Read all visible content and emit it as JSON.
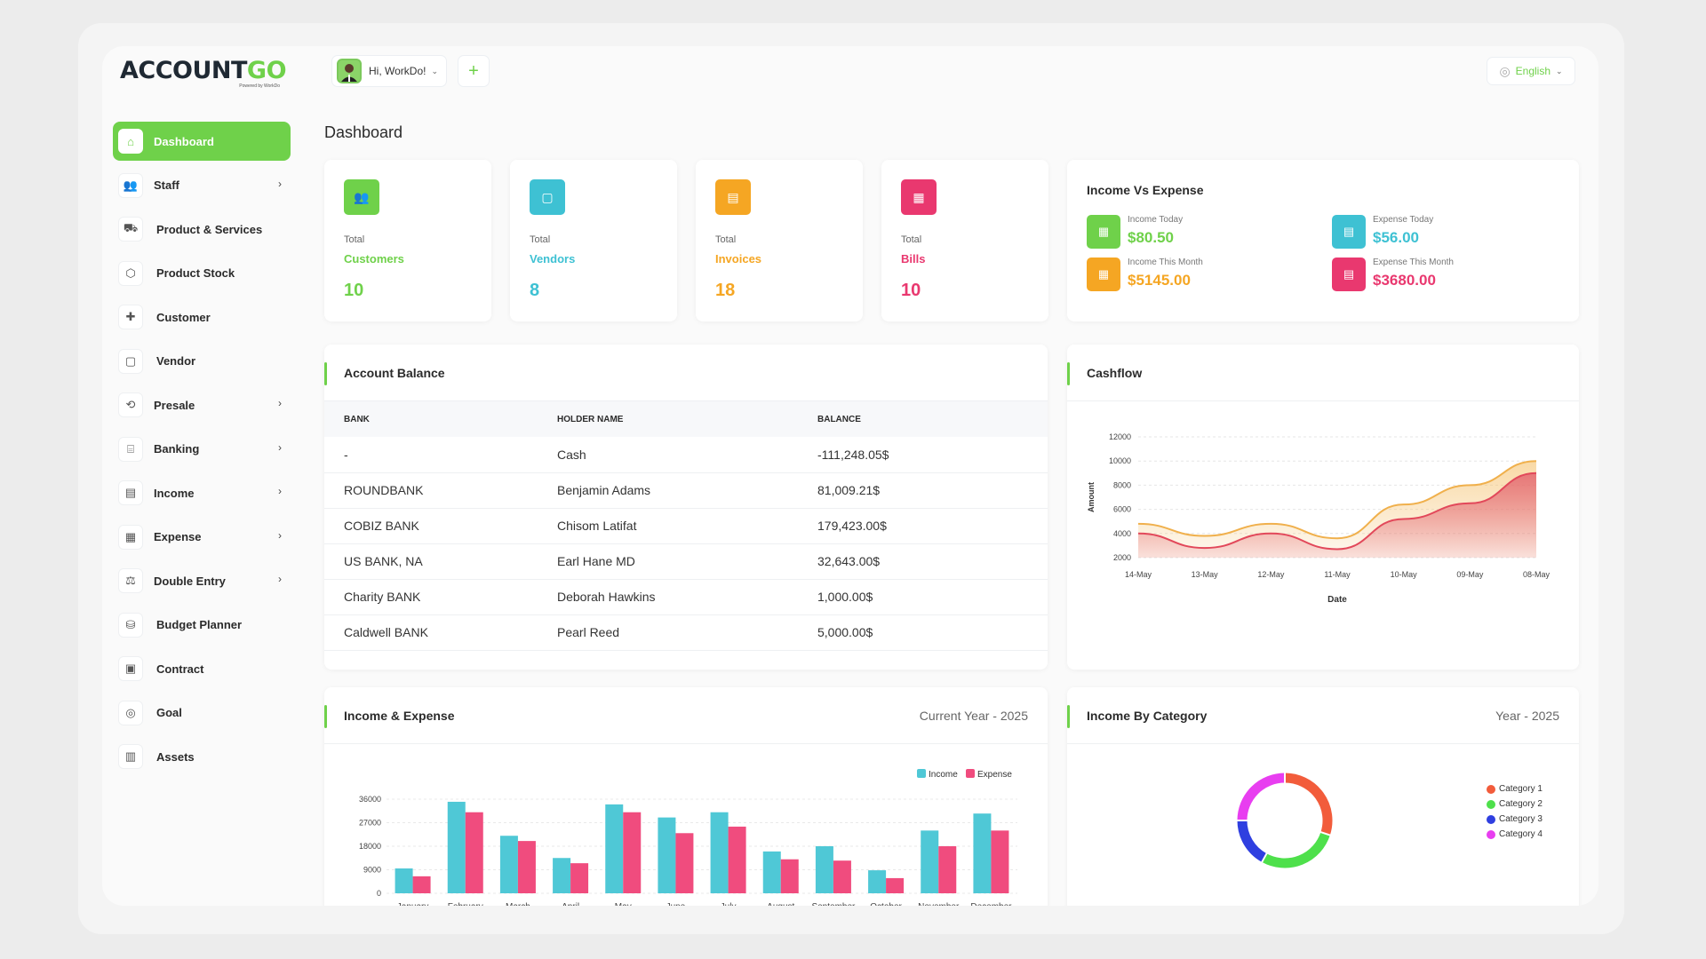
{
  "app": {
    "logo_text_main": "ACCOUNT",
    "logo_text_accent": "GO",
    "logo_sub": "Powered by WorkDo",
    "user_greeting": "Hi, WorkDo!",
    "add_label": "+",
    "language": "English"
  },
  "sidebar": {
    "items": [
      {
        "label": "Dashboard",
        "icon": "home-icon",
        "active": true,
        "has_chevron": false
      },
      {
        "label": "Staff",
        "icon": "users-icon",
        "active": false,
        "has_chevron": true
      },
      {
        "label": "Product & Services",
        "icon": "cart-icon",
        "active": false,
        "has_chevron": false
      },
      {
        "label": "Product Stock",
        "icon": "box-icon",
        "active": false,
        "has_chevron": false
      },
      {
        "label": "Customer",
        "icon": "user-plus-icon",
        "active": false,
        "has_chevron": false
      },
      {
        "label": "Vendor",
        "icon": "note-icon",
        "active": false,
        "has_chevron": false
      },
      {
        "label": "Presale",
        "icon": "presale-icon",
        "active": false,
        "has_chevron": true
      },
      {
        "label": "Banking",
        "icon": "bank-icon",
        "active": false,
        "has_chevron": true
      },
      {
        "label": "Income",
        "icon": "file-icon",
        "active": false,
        "has_chevron": true
      },
      {
        "label": "Expense",
        "icon": "receipt-icon",
        "active": false,
        "has_chevron": true
      },
      {
        "label": "Double Entry",
        "icon": "scale-icon",
        "active": false,
        "has_chevron": true
      },
      {
        "label": "Budget Planner",
        "icon": "coins-icon",
        "active": false,
        "has_chevron": false
      },
      {
        "label": "Contract",
        "icon": "contract-icon",
        "active": false,
        "has_chevron": false
      },
      {
        "label": "Goal",
        "icon": "target-icon",
        "active": false,
        "has_chevron": false
      },
      {
        "label": "Assets",
        "icon": "assets-icon",
        "active": false,
        "has_chevron": false
      }
    ]
  },
  "page": {
    "title": "Dashboard"
  },
  "stats": [
    {
      "total": "Total",
      "label": "Customers",
      "value": "10",
      "color": "#6fd14a",
      "icon": "users-icon"
    },
    {
      "total": "Total",
      "label": "Vendors",
      "value": "8",
      "color": "#3ec1d3",
      "icon": "note-icon"
    },
    {
      "total": "Total",
      "label": "Invoices",
      "value": "18",
      "color": "#f5a623",
      "icon": "invoice-icon"
    },
    {
      "total": "Total",
      "label": "Bills",
      "value": "10",
      "color": "#e9386f",
      "icon": "bill-icon"
    }
  ],
  "income_vs_expense": {
    "title": "Income Vs Expense",
    "items": [
      {
        "label": "Income Today",
        "value": "$80.50",
        "color": "#6fd14a"
      },
      {
        "label": "Expense Today",
        "value": "$56.00",
        "color": "#3ec1d3"
      },
      {
        "label": "Income This Month",
        "value": "$5145.00",
        "color": "#f5a623"
      },
      {
        "label": "Expense This Month",
        "value": "$3680.00",
        "color": "#e9386f"
      }
    ]
  },
  "account_balance": {
    "title": "Account Balance",
    "columns": [
      "BANK",
      "HOLDER NAME",
      "BALANCE"
    ],
    "rows": [
      [
        "-",
        "Cash",
        "-111,248.05$"
      ],
      [
        "ROUNDBANK",
        "Benjamin Adams",
        "81,009.21$"
      ],
      [
        "COBIZ BANK",
        "Chisom Latifat",
        "179,423.00$"
      ],
      [
        "US BANK, NA",
        "Earl Hane MD",
        "32,643.00$"
      ],
      [
        "Charity BANK",
        "Deborah Hawkins",
        "1,000.00$"
      ],
      [
        "Caldwell BANK",
        "Pearl Reed",
        "5,000.00$"
      ]
    ]
  },
  "cashflow": {
    "title": "Cashflow"
  },
  "income_expense": {
    "title": "Income & Expense",
    "subtitle": "Current Year - 2025"
  },
  "income_by_category": {
    "title": "Income By Category",
    "subtitle": "Year - 2025"
  },
  "chart_data": [
    {
      "type": "area",
      "title": "Cashflow",
      "xlabel": "Date",
      "ylabel": "Amount",
      "categories": [
        "14-May",
        "13-May",
        "12-May",
        "11-May",
        "10-May",
        "09-May",
        "08-May"
      ],
      "yticks": [
        2000,
        4000,
        6000,
        8000,
        10000,
        12000
      ],
      "ylim": [
        2000,
        12000
      ],
      "series": [
        {
          "values": [
            4800,
            3800,
            4800,
            3600,
            6400,
            8000,
            10000
          ],
          "color": "#f5c06a"
        },
        {
          "values": [
            4000,
            2800,
            4000,
            2700,
            5200,
            6500,
            9000
          ],
          "color": "#e98a8a"
        }
      ],
      "grid": true
    },
    {
      "type": "bar",
      "title": "Income & Expense",
      "categories": [
        "January",
        "February",
        "March",
        "April",
        "May",
        "June",
        "July",
        "August",
        "September",
        "October",
        "November",
        "December"
      ],
      "yticks": [
        0,
        9000,
        18000,
        27000,
        36000
      ],
      "ylim": [
        0,
        36000
      ],
      "series": [
        {
          "name": "Income",
          "values": [
            9500,
            35000,
            22000,
            13500,
            34000,
            29000,
            31000,
            16000,
            18000,
            8800,
            24000,
            30500
          ],
          "color": "#4fc8d6"
        },
        {
          "name": "Expense",
          "values": [
            6500,
            31000,
            20000,
            11500,
            31000,
            23000,
            25500,
            13000,
            12500,
            5800,
            18000,
            24000
          ],
          "color": "#f04c7e"
        }
      ],
      "legend": "top-right",
      "grid": true
    },
    {
      "type": "pie",
      "title": "Income By Category",
      "categories": [
        "Category 1",
        "Category 2",
        "Category 3",
        "Category 4"
      ],
      "values": [
        30,
        28,
        17,
        25
      ],
      "colors": [
        "#f25c3b",
        "#4ee04b",
        "#2f3fe0",
        "#e83ef0"
      ],
      "legend": "right"
    }
  ]
}
